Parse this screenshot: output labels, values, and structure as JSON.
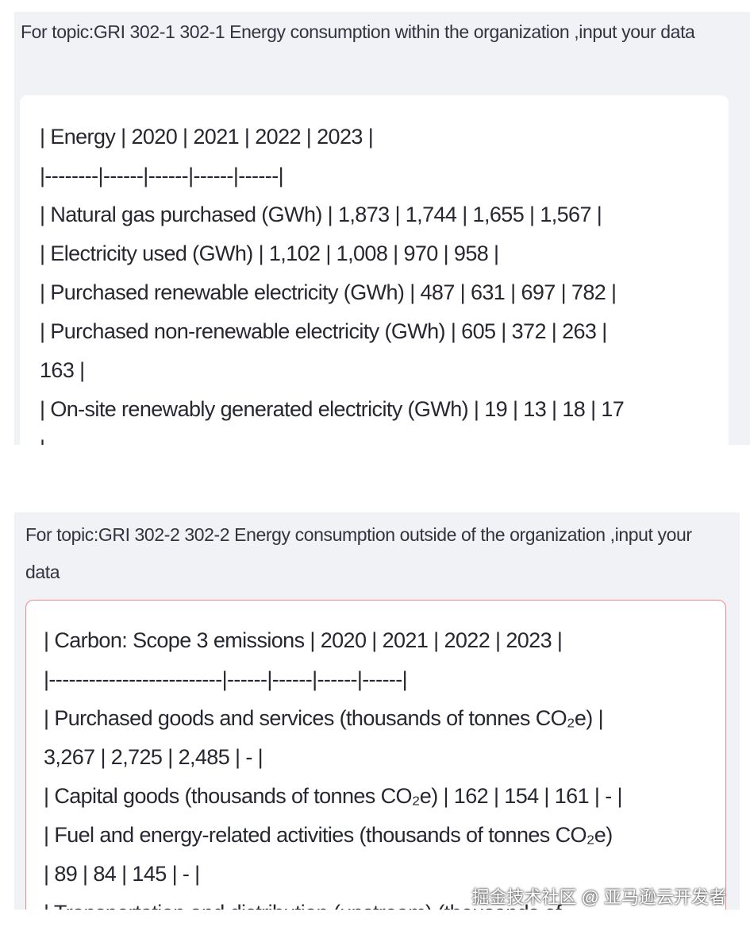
{
  "panels": [
    {
      "label": "For topic:GRI 302-1 302-1 Energy consumption within the organization ,input your data",
      "lines": [
        "| Energy | 2020 | 2021 | 2022 | 2023 |",
        "|--------|------|------|------|------|",
        "| Natural gas purchased (GWh) | 1,873 | 1,744 | 1,655 | 1,567 |",
        "| Electricity used (GWh) | 1,102 | 1,008 | 970 | 958 |",
        "| Purchased renewable electricity (GWh) | 487 | 631 | 697 | 782 |",
        "| Purchased non-renewable electricity (GWh) | 605 | 372 | 263 |",
        "163 |",
        "| On-site renewably generated electricity (GWh) | 19 | 13 | 18 | 17",
        "|"
      ]
    },
    {
      "label": "For topic:GRI 302-2 302-2 Energy consumption outside of the organization ,input your data",
      "lines": [
        "| Carbon: Scope 3 emissions | 2020 | 2021 | 2022 | 2023 |",
        "|--------------------------|------|------|------|------|",
        "| Purchased goods and services (thousands of tonnes CO₂e) |",
        "3,267 | 2,725 | 2,485 | - |",
        "| Capital goods (thousands of tonnes CO₂e) | 162 | 154 | 161 | - |",
        "| Fuel and energy-related activities (thousands of tonnes CO₂e)",
        "| 89 | 84 | 145 | - |",
        "| Transportation and distribution (upstream) (thousands of"
      ]
    }
  ],
  "watermark": "掘金技术社区 @ 亚马逊云开发者"
}
